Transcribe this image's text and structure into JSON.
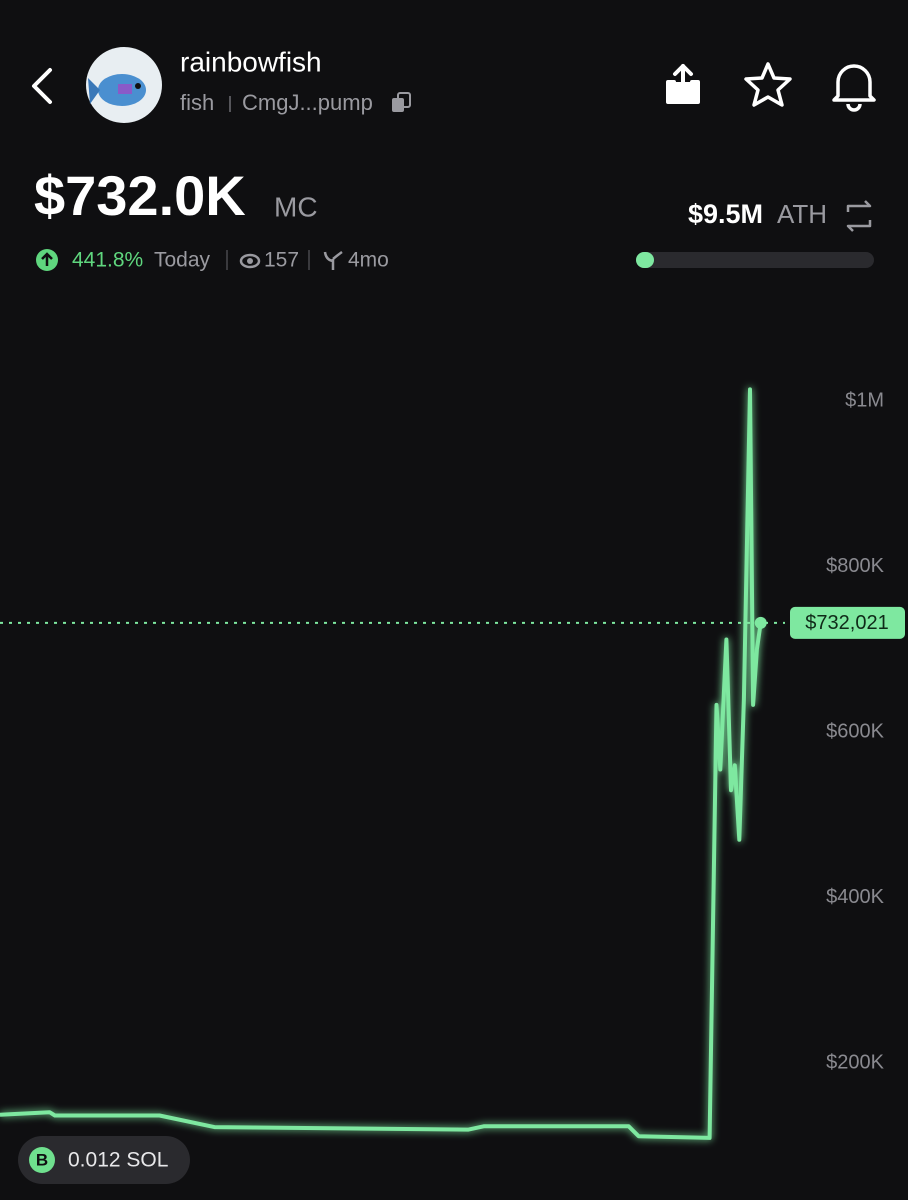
{
  "header": {
    "name": "rainbowfish",
    "symbol": "fish",
    "address": "CmgJ...pump"
  },
  "stats": {
    "market_cap": "$732.0K",
    "market_cap_label": "MC",
    "change": "441.8%",
    "change_period": "Today",
    "views": "157",
    "age": "4mo",
    "ath": "$9.5M",
    "ath_label": "ATH"
  },
  "chart": {
    "type": "line",
    "color": "#7ee8a0",
    "x": [
      0,
      6.5,
      7.2,
      20.9,
      28.1,
      61.4,
      63.4,
      82.4,
      83.7,
      93.0,
      93.9,
      94.4,
      95.2,
      95.8,
      96.3,
      96.9,
      97.5,
      98.3,
      98.7,
      99.2,
      99.7
    ],
    "values": [
      138000,
      141000,
      137000,
      137000,
      123000,
      120000,
      124000,
      124000,
      112000,
      110000,
      633000,
      555000,
      712000,
      530000,
      560000,
      470000,
      640000,
      1014000,
      633000,
      700000,
      732000
    ],
    "xlim": [
      0,
      100
    ],
    "ylim": [
      35000,
      1122000
    ],
    "yticks": [
      {
        "value": 200000,
        "label": "$200K"
      },
      {
        "value": 400000,
        "label": "$400K"
      },
      {
        "value": 600000,
        "label": "$600K"
      },
      {
        "value": 800000,
        "label": "$800K"
      },
      {
        "value": 1000000,
        "label": "$1M"
      }
    ],
    "current": {
      "value": 732021,
      "label": "$732,021"
    }
  },
  "badge": {
    "icon": "B",
    "amount": "0.012 SOL"
  }
}
